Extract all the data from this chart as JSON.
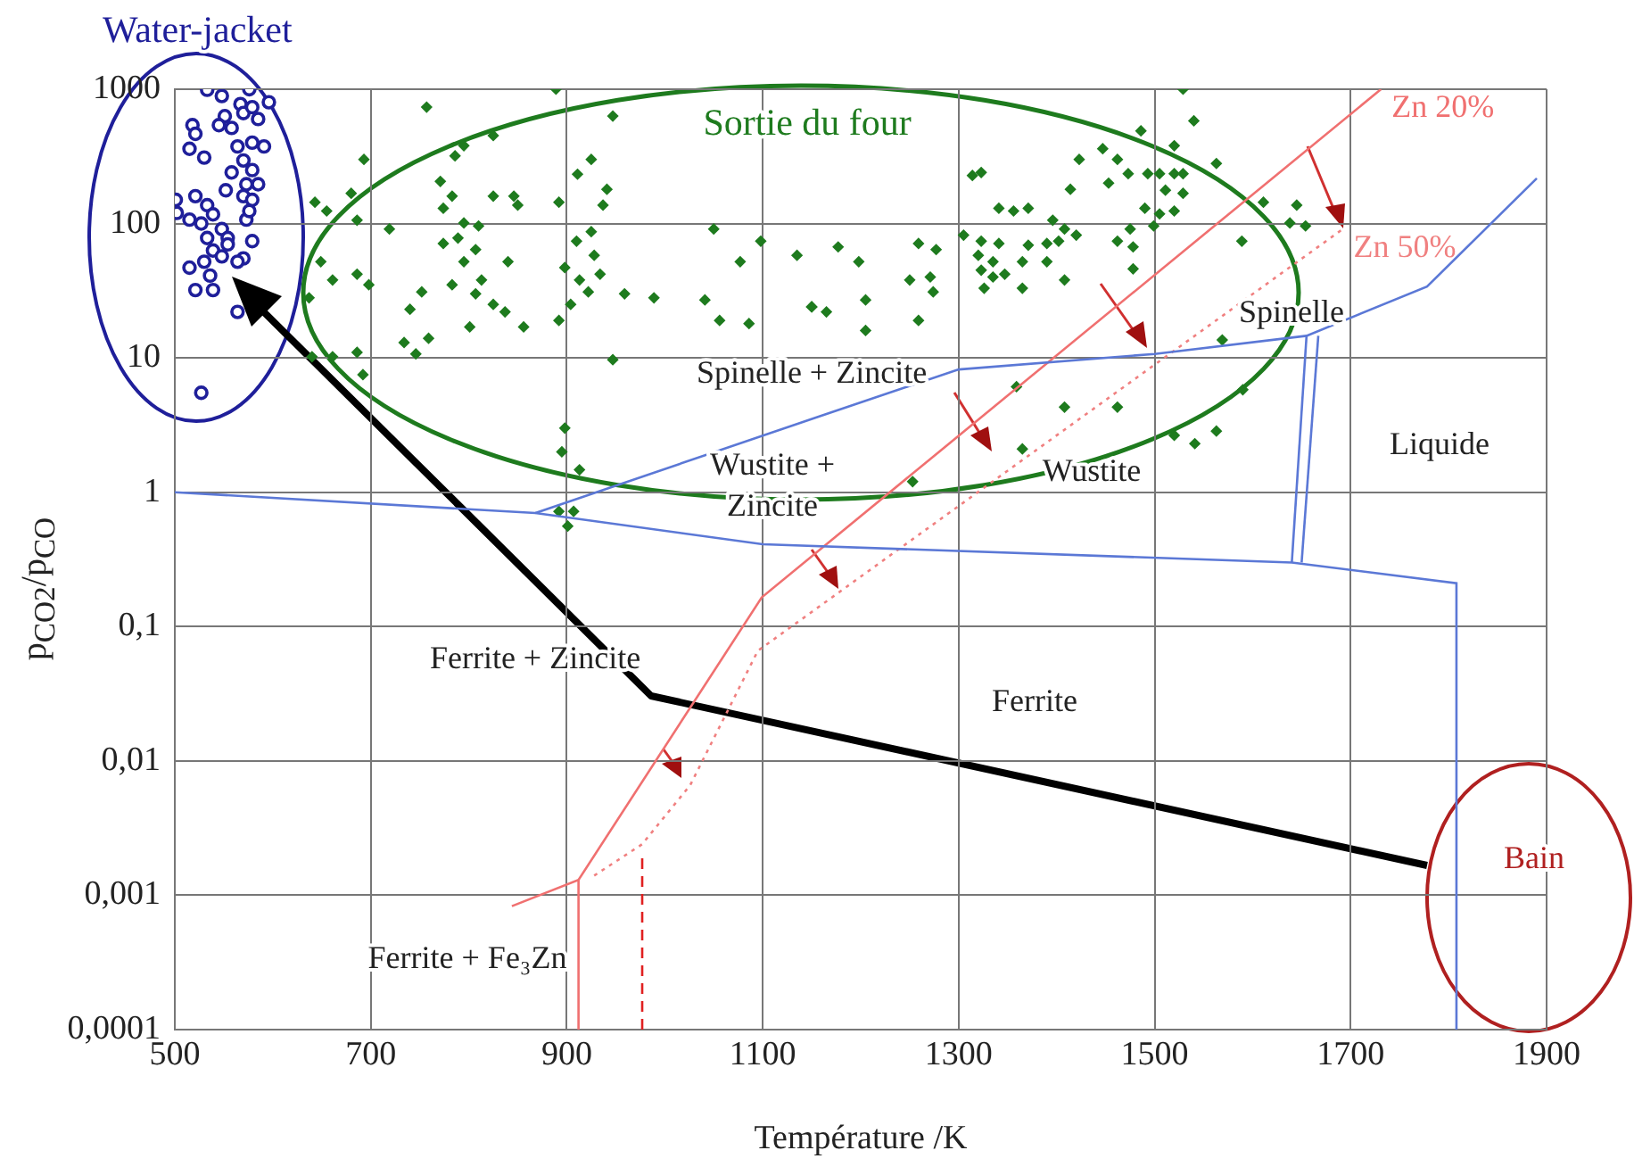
{
  "chart_data": {
    "type": "scatter",
    "xlabel": "Température /K",
    "ylabel": "p$_{CO2}$/p$_{CO}$",
    "log": "y",
    "grid": true,
    "legend": false,
    "xlim": [
      500,
      1900
    ],
    "xticks": [
      500,
      700,
      900,
      1100,
      1300,
      1500,
      1700,
      1900
    ],
    "ylim": [
      0.0001,
      1000
    ],
    "yticks": [
      {
        "value": 0.0001,
        "label": "0,0001"
      },
      {
        "value": 0.001,
        "label": "0,001"
      },
      {
        "value": 0.01,
        "label": "0,01"
      },
      {
        "value": 0.1,
        "label": "0,1"
      },
      1,
      10,
      100,
      1000
    ],
    "series": [
      {
        "type": "line",
        "color": "#5b78d6",
        "marker": "none",
        "line_style": "solid",
        "x": [
          500,
          868,
          1100,
          1640,
          1808,
          1808
        ],
        "values": [
          1,
          0.7,
          0.41,
          0.3,
          0.21,
          0.0001
        ]
      },
      {
        "type": "line",
        "color": "#5b78d6",
        "marker": "none",
        "line_style": "solid",
        "x": [
          868,
          1159,
          1300,
          1500,
          1655,
          1778,
          1890
        ],
        "values": [
          0.7,
          3.7,
          8.2,
          10.7,
          14.6,
          34,
          217
        ]
      },
      {
        "type": "line",
        "color": "#5b78d6",
        "marker": "none",
        "line_style": "solid",
        "x": [
          1655,
          1640
        ],
        "values": [
          14.6,
          0.3
        ]
      },
      {
        "type": "line",
        "color": "#5b78d6",
        "marker": "none",
        "line_style": "solid",
        "x": [
          1667,
          1650
        ],
        "values": [
          14.6,
          0.3
        ]
      },
      {
        "type": "line",
        "name": "Zn 20%",
        "color": "#f07070",
        "marker": "none",
        "line_style": "solid",
        "x": [
          844,
          912,
          1099,
          1731
        ],
        "values": [
          0.00083,
          0.0013,
          0.165,
          1000
        ]
      },
      {
        "type": "line",
        "color": "#f07070",
        "marker": "none",
        "line_style": "solid",
        "x": [
          912,
          912
        ],
        "values": [
          0.0013,
          0.0001
        ]
      },
      {
        "type": "line",
        "name": "Zn 50%",
        "color": "#f08080",
        "marker": "none",
        "line_style": "dotted",
        "x": [
          928,
          977,
          1026,
          1095,
          1692
        ],
        "values": [
          0.0014,
          0.0024,
          0.0066,
          0.066,
          91
        ]
      },
      {
        "type": "line",
        "color": "#e02020",
        "marker": "none",
        "line_style": "dashed",
        "x": [
          977,
          977
        ],
        "values": [
          0.0001,
          0.002
        ]
      },
      {
        "type": "scatter",
        "name": "Water-jacket",
        "color": "#1f1f9a",
        "marker": "circle",
        "x": [
          533,
          548,
          576,
          596,
          567,
          570,
          579,
          585,
          551,
          545,
          518,
          521,
          515,
          530,
          558,
          564,
          579,
          591,
          570,
          579,
          558,
          573,
          585,
          552,
          570,
          579,
          501,
          502,
          521,
          533,
          515,
          527,
          539,
          548,
          554,
          533,
          539,
          548,
          530,
          554,
          579,
          573,
          576,
          570,
          564,
          515,
          536,
          521,
          539,
          564,
          527
        ],
        "values": [
          990,
          890,
          1000,
          800,
          775,
          665,
          735,
          600,
          630,
          540,
          540,
          465,
          360,
          310,
          515,
          375,
          400,
          375,
          295,
          250,
          240,
          196,
          196,
          177,
          160,
          150,
          150,
          120,
          160,
          137,
          107,
          100,
          117,
          91,
          78,
          78,
          63,
          57,
          52,
          70,
          74,
          107,
          124,
          55,
          52,
          47,
          41,
          32,
          32,
          22,
          5.5
        ]
      },
      {
        "type": "scatter",
        "name": "Sortie du four",
        "color": "#1e7b1e",
        "marker": "diamond",
        "x": [
          889,
          757,
          947,
          825,
          786,
          795,
          925,
          911,
          941,
          937,
          693,
          680,
          643,
          655,
          686,
          719,
          771,
          783,
          774,
          795,
          810,
          825,
          846,
          850,
          892,
          774,
          789,
          807,
          795,
          813,
          783,
          807,
          825,
          801,
          837,
          856,
          840,
          910,
          925,
          928,
          898,
          913,
          934,
          922,
          904,
          892,
          959,
          989,
          1050,
          1077,
          1098,
          1041,
          1056,
          1086,
          1135,
          1150,
          649,
          637,
          661,
          686,
          698,
          740,
          752,
          759,
          734,
          746,
          686,
          661,
          640,
          692,
          947,
          898,
          895,
          913,
          892,
          907,
          901,
          1529,
          1540,
          1486,
          1520,
          1563,
          1447,
          1462,
          1423,
          1314,
          1323,
          1473,
          1493,
          1505,
          1520,
          1529,
          1453,
          1414,
          1511,
          1529,
          1341,
          1356,
          1371,
          1396,
          1408,
          1420,
          1490,
          1505,
          1520,
          1499,
          1305,
          1323,
          1341,
          1371,
          1390,
          1402,
          1259,
          1277,
          1475,
          1462,
          1478,
          1320,
          1335,
          1365,
          1390,
          1323,
          1335,
          1347,
          1408,
          1478,
          1250,
          1271,
          1274,
          1365,
          1326,
          1259,
          1205,
          1205,
          1165,
          1150,
          1177,
          1198,
          1611,
          1645,
          1638,
          1654,
          1589,
          1569,
          1590,
          1359,
          1408,
          1462,
          1520,
          1541,
          1563,
          1365,
          1253
        ],
        "values": [
          1000,
          736,
          631,
          452,
          319,
          380,
          300,
          233,
          180,
          137,
          300,
          168,
          144,
          124,
          106,
          91,
          206,
          160,
          130,
          101,
          96,
          160,
          160,
          137,
          144,
          71,
          78,
          64,
          52,
          38,
          35,
          30,
          25,
          17,
          22,
          17,
          52,
          74,
          87,
          58,
          47,
          38,
          42,
          31,
          25,
          19,
          30,
          28,
          91,
          52,
          74,
          27,
          19,
          18,
          58,
          24,
          52,
          28,
          38,
          42,
          35,
          23,
          31,
          14,
          13,
          10.7,
          11,
          10.2,
          10.2,
          7.5,
          9.7,
          3.0,
          2.0,
          1.47,
          0.72,
          0.72,
          0.56,
          1000,
          582,
          490,
          380,
          280,
          361,
          300,
          300,
          228,
          240,
          235,
          235,
          235,
          235,
          235,
          200,
          180,
          177,
          168,
          130,
          124,
          130,
          106,
          91,
          82,
          130,
          118,
          124,
          96,
          82,
          74,
          71,
          69,
          71,
          74,
          71,
          64,
          91,
          74,
          67,
          58,
          52,
          52,
          52,
          45,
          40,
          42,
          38,
          46,
          38,
          40,
          31,
          33,
          33,
          19,
          27,
          16,
          22,
          24,
          67,
          52,
          144,
          137,
          101,
          96,
          74,
          13.6,
          5.8,
          6.1,
          4.3,
          4.3,
          2.65,
          2.3,
          2.85,
          2.1,
          1.2
        ]
      }
    ],
    "annotations": [
      "Spinelle + Zincite",
      "Wustite +\nZincite",
      "Spinelle",
      "Wustite",
      "Liquide",
      "Ferrite + Zincite",
      "Ferrite",
      "Ferrite + Fe₃Zn",
      "Bain"
    ]
  }
}
